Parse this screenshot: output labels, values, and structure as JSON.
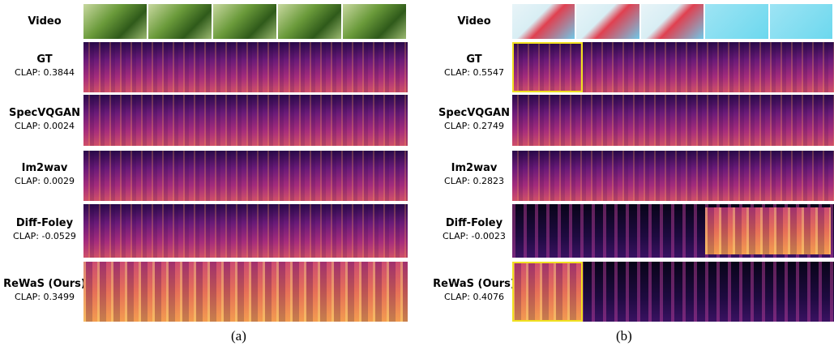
{
  "panels": [
    {
      "caption": "(a)",
      "video_label": "Video",
      "rows": [
        {
          "method": "GT",
          "score": "CLAP: 0.3844"
        },
        {
          "method": "SpecVQGAN",
          "score": "CLAP: 0.0024"
        },
        {
          "method": "Im2wav",
          "score": "CLAP: 0.0029"
        },
        {
          "method": "Diff-Foley",
          "score": "CLAP: -0.0529"
        },
        {
          "method": "ReWaS (Ours)",
          "score": "CLAP: 0.3499"
        }
      ]
    },
    {
      "caption": "(b)",
      "video_label": "Video",
      "rows": [
        {
          "method": "GT",
          "score": "CLAP: 0.5547"
        },
        {
          "method": "SpecVQGAN",
          "score": "CLAP: 0.2749"
        },
        {
          "method": "Im2wav",
          "score": "CLAP: 0.2823"
        },
        {
          "method": "Diff-Foley",
          "score": "CLAP: -0.0023"
        },
        {
          "method": "ReWaS (Ours)",
          "score": "CLAP: 0.4076"
        }
      ]
    }
  ]
}
